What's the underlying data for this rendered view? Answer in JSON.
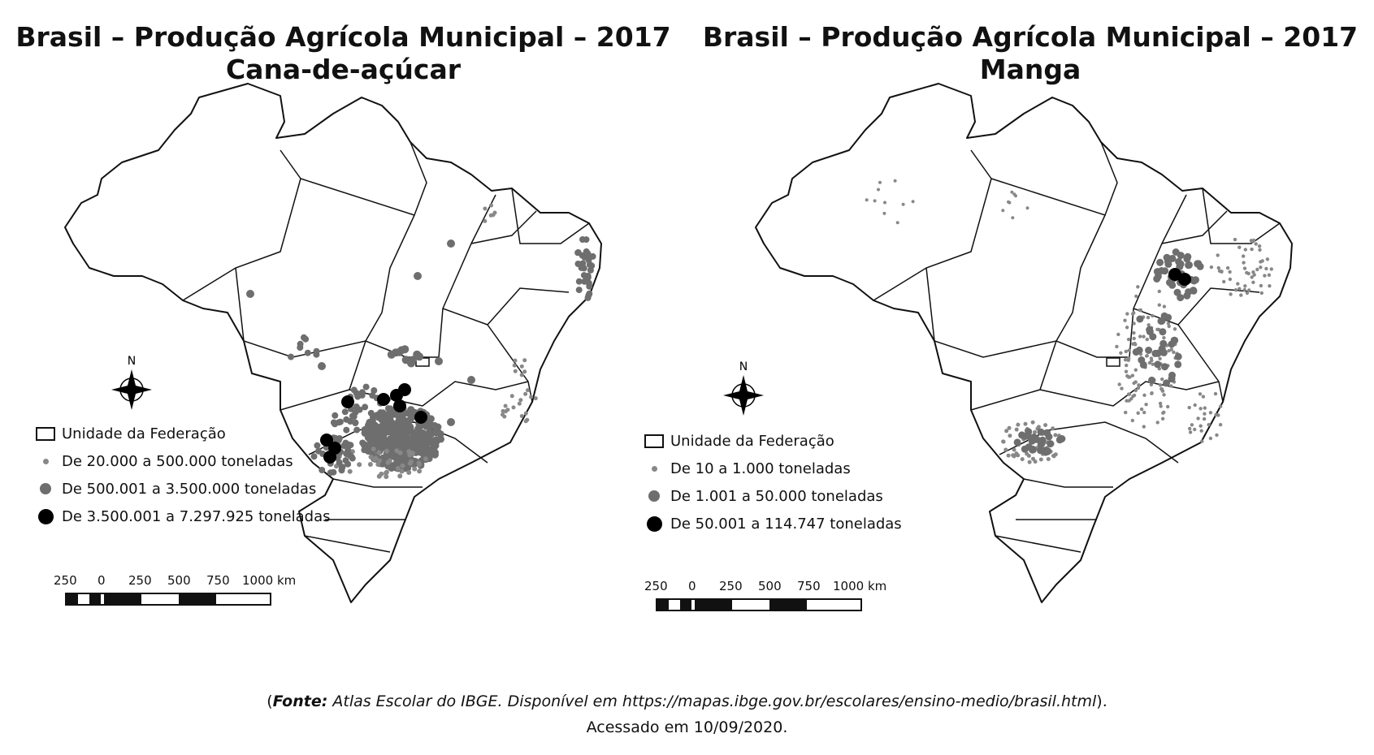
{
  "maps": [
    {
      "title_line1": "Brasil – Produção Agrícola Municipal – 2017",
      "title_line2": "Cana-de-açúcar",
      "north": "N",
      "legend": {
        "uf": "Unidade da Federação",
        "class1": "De 20.000 a 500.000 toneladas",
        "class2": "De 500.001 a 3.500.000 toneladas",
        "class3": "De 3.500.001 a 7.297.925 toneladas"
      },
      "scale": {
        "t0": "250",
        "t1": "0",
        "t2": "250",
        "t3": "500",
        "t4": "750",
        "t5": "1000 km"
      }
    },
    {
      "title_line1": "Brasil – Produção Agrícola Municipal – 2017",
      "title_line2": "Manga",
      "north": "N",
      "legend": {
        "uf": "Unidade da Federação",
        "class1": "De 10 a 1.000 toneladas",
        "class2": "De 1.001 a 50.000 toneladas",
        "class3": "De 50.001 a 114.747 toneladas"
      },
      "scale": {
        "t0": "250",
        "t1": "0",
        "t2": "250",
        "t3": "500",
        "t4": "750",
        "t5": "1000 km"
      }
    }
  ],
  "source": {
    "open": "(",
    "label": "Fonte:",
    "text": " Atlas Escolar do IBGE. Disponível em https://mapas.ibge.gov.br/escolares/ensino-medio/brasil.html",
    "close": ").",
    "accessed": "Acessado em 10/09/2020."
  },
  "colors": {
    "small_dot": "#888888",
    "medium_dot": "#6e6e6e",
    "large_dot": "#000000",
    "border": "#111111"
  }
}
